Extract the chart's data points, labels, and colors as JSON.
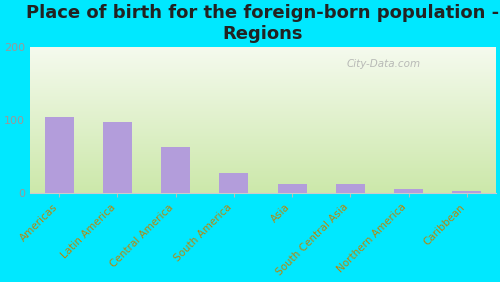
{
  "title": "Place of birth for the foreign-born population -\nRegions",
  "categories": [
    "Americas",
    "Latin America",
    "Central America",
    "South America",
    "Asia",
    "South Central Asia",
    "Northern America",
    "Caribbean"
  ],
  "values": [
    104,
    98,
    63,
    27,
    13,
    12,
    5,
    3
  ],
  "bar_color": "#b39ddb",
  "background_outer": "#00e8ff",
  "background_chart_top": "#f5faee",
  "background_chart_bottom": "#cce8aa",
  "ylim": [
    0,
    200
  ],
  "yticks": [
    0,
    100,
    200
  ],
  "title_fontsize": 13,
  "tick_label_fontsize": 7.5,
  "ytick_fontsize": 8,
  "watermark": "City-Data.com"
}
